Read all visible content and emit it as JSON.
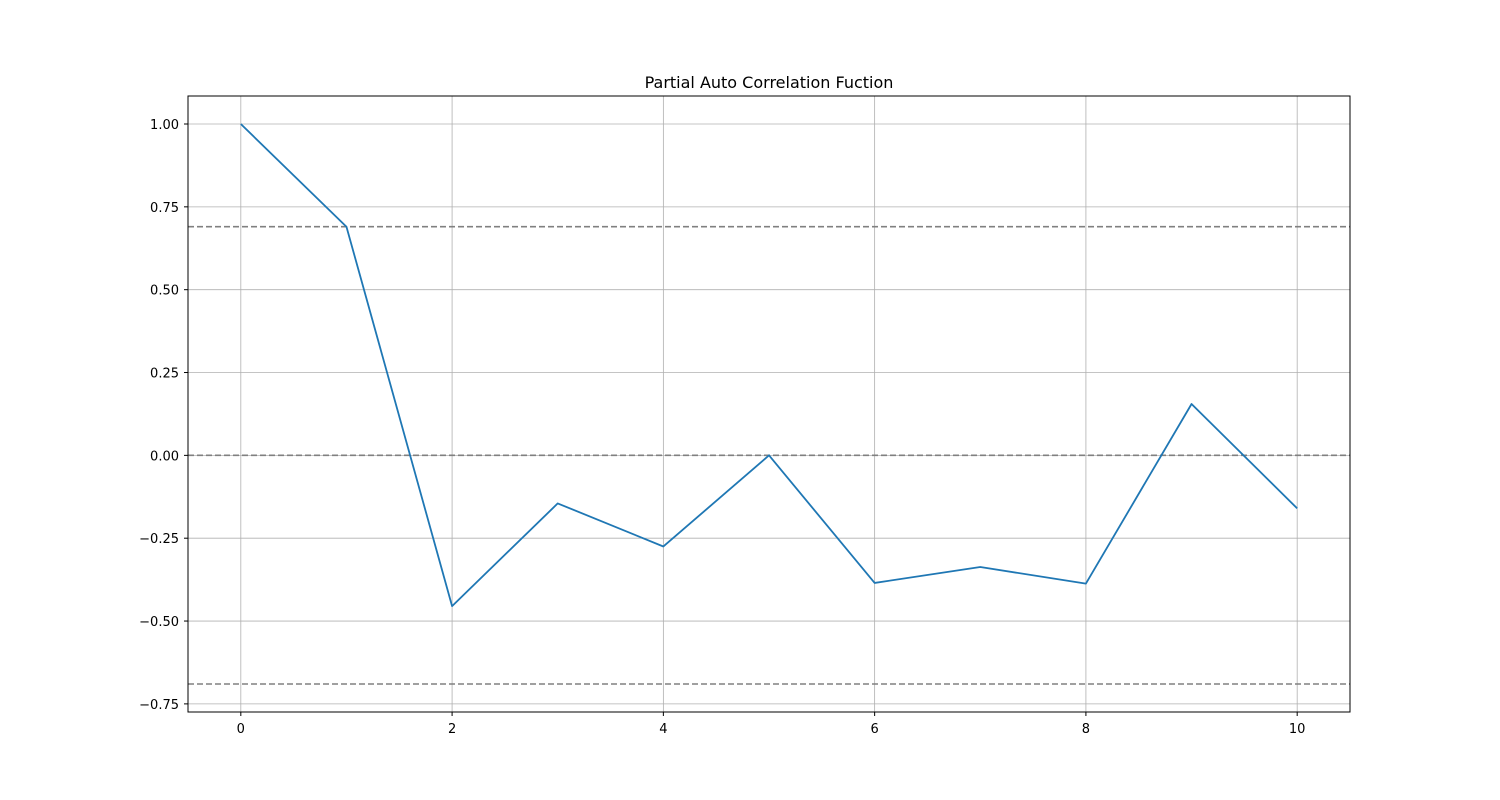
{
  "chart_data": {
    "type": "line",
    "title": "Partial Auto Correlation Fuction",
    "xlabel": "",
    "ylabel": "",
    "x": [
      0,
      1,
      2,
      3,
      4,
      5,
      6,
      7,
      8,
      9,
      10
    ],
    "series": [
      {
        "values": [
          1.0,
          0.69,
          -0.455,
          -0.145,
          -0.275,
          0.0,
          -0.385,
          -0.337,
          -0.387,
          0.155,
          -0.16
        ],
        "color": "#1f77b4"
      }
    ],
    "reference_lines": [
      {
        "y": 0.69,
        "style": "dashed",
        "color": "#808080"
      },
      {
        "y": 0.0,
        "style": "dashed",
        "color": "#808080"
      },
      {
        "y": -0.69,
        "style": "dashed",
        "color": "#808080"
      }
    ],
    "xlim": [
      -0.5,
      10.5
    ],
    "ylim": [
      -0.7745,
      1.0845
    ],
    "x_ticks": [
      0,
      2,
      4,
      6,
      8,
      10
    ],
    "x_tick_labels": [
      "0",
      "2",
      "4",
      "6",
      "8",
      "10"
    ],
    "y_ticks": [
      -0.75,
      -0.5,
      -0.25,
      0.0,
      0.25,
      0.5,
      0.75,
      1.0
    ],
    "y_tick_labels": [
      "−0.75",
      "−0.50",
      "−0.25",
      "0.00",
      "0.25",
      "0.50",
      "0.75",
      "1.00"
    ],
    "grid": true,
    "legend": "none"
  }
}
